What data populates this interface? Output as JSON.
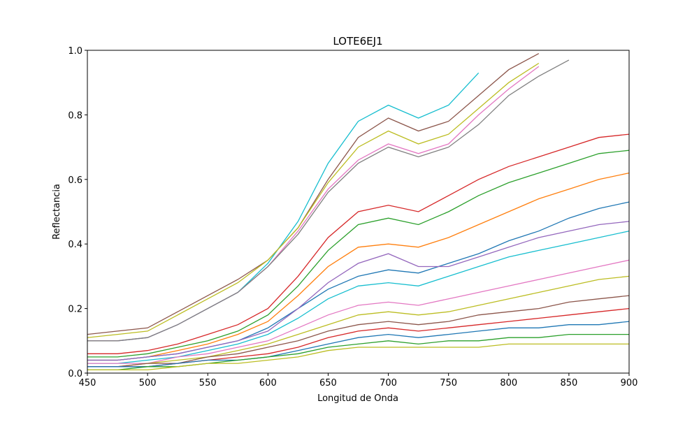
{
  "chart_data": {
    "type": "line",
    "title": "LOTE6EJ1",
    "x_label": "Longitud de Onda",
    "y_label": "Reflectancia",
    "x": [
      450,
      475,
      500,
      525,
      550,
      575,
      600,
      625,
      650,
      675,
      700,
      725,
      750,
      775,
      800,
      825,
      850,
      875,
      900
    ],
    "xlim": [
      450,
      900
    ],
    "xticks": [
      450,
      500,
      550,
      600,
      650,
      700,
      750,
      800,
      850,
      900
    ],
    "ylim": [
      0,
      1
    ],
    "yticks": [
      {
        "value": 0,
        "label": "0.0"
      },
      {
        "value": 0.2,
        "label": "0.2"
      },
      {
        "value": 0.4,
        "label": "0.4"
      },
      {
        "value": 0.6,
        "label": "0.6"
      },
      {
        "value": 0.8,
        "label": "0.8"
      },
      {
        "value": 1,
        "label": "1.0"
      }
    ],
    "series": [
      {
        "color": "#17becf",
        "values": [
          0.1,
          0.1,
          0.11,
          0.15,
          0.2,
          0.25,
          0.34,
          0.47,
          0.65,
          0.78,
          0.83,
          0.79,
          0.83,
          0.93,
          null,
          null,
          null,
          null,
          null
        ]
      },
      {
        "color": "#8c564b",
        "values": [
          0.12,
          0.13,
          0.14,
          0.19,
          0.24,
          0.29,
          0.35,
          0.45,
          0.6,
          0.73,
          0.79,
          0.75,
          0.78,
          0.86,
          0.94,
          0.99,
          null,
          null,
          null
        ]
      },
      {
        "color": "#bcbd22",
        "values": [
          0.11,
          0.12,
          0.13,
          0.18,
          0.23,
          0.28,
          0.35,
          0.45,
          0.59,
          0.7,
          0.75,
          0.71,
          0.74,
          0.82,
          0.9,
          0.96,
          null,
          null,
          null
        ]
      },
      {
        "color": "#e377c2",
        "values": [
          0.1,
          0.1,
          0.11,
          0.15,
          0.2,
          0.25,
          0.33,
          0.44,
          0.57,
          0.66,
          0.71,
          0.68,
          0.71,
          0.8,
          0.88,
          0.95,
          null,
          null,
          null
        ]
      },
      {
        "color": "#7f7f7f",
        "values": [
          0.1,
          0.1,
          0.11,
          0.15,
          0.2,
          0.25,
          0.33,
          0.43,
          0.56,
          0.65,
          0.7,
          0.67,
          0.7,
          0.77,
          0.86,
          0.92,
          0.97,
          null,
          null
        ]
      },
      {
        "color": "#d62728",
        "values": [
          0.06,
          0.06,
          0.07,
          0.09,
          0.12,
          0.15,
          0.2,
          0.3,
          0.42,
          0.5,
          0.52,
          0.5,
          0.55,
          0.6,
          0.64,
          0.67,
          0.7,
          0.73,
          0.74
        ]
      },
      {
        "color": "#2ca02c",
        "values": [
          0.05,
          0.05,
          0.06,
          0.08,
          0.1,
          0.13,
          0.18,
          0.27,
          0.38,
          0.46,
          0.48,
          0.46,
          0.5,
          0.55,
          0.59,
          0.62,
          0.65,
          0.68,
          0.69
        ]
      },
      {
        "color": "#ff7f0e",
        "values": [
          0.04,
          0.04,
          0.05,
          0.07,
          0.09,
          0.12,
          0.16,
          0.24,
          0.33,
          0.39,
          0.4,
          0.39,
          0.42,
          0.46,
          0.5,
          0.54,
          0.57,
          0.6,
          0.62
        ]
      },
      {
        "color": "#1f77b4",
        "values": [
          0.04,
          0.04,
          0.05,
          0.06,
          0.08,
          0.1,
          0.14,
          0.2,
          0.26,
          0.3,
          0.32,
          0.31,
          0.34,
          0.37,
          0.41,
          0.44,
          0.48,
          0.51,
          0.53
        ]
      },
      {
        "color": "#9467bd",
        "values": [
          0.04,
          0.04,
          0.05,
          0.06,
          0.08,
          0.1,
          0.13,
          0.2,
          0.28,
          0.34,
          0.37,
          0.33,
          0.33,
          0.36,
          0.39,
          0.42,
          0.44,
          0.46,
          0.47
        ]
      },
      {
        "color": "#17becf",
        "values": [
          0.03,
          0.03,
          0.04,
          0.05,
          0.07,
          0.09,
          0.12,
          0.17,
          0.23,
          0.27,
          0.28,
          0.27,
          0.3,
          0.33,
          0.36,
          0.38,
          0.4,
          0.42,
          0.44
        ]
      },
      {
        "color": "#e377c2",
        "values": [
          0.03,
          0.03,
          0.03,
          0.05,
          0.06,
          0.08,
          0.1,
          0.14,
          0.18,
          0.21,
          0.22,
          0.21,
          0.23,
          0.25,
          0.27,
          0.29,
          0.31,
          0.33,
          0.35
        ]
      },
      {
        "color": "#bcbd22",
        "values": [
          0.02,
          0.02,
          0.03,
          0.04,
          0.05,
          0.07,
          0.09,
          0.12,
          0.15,
          0.18,
          0.19,
          0.18,
          0.19,
          0.21,
          0.23,
          0.25,
          0.27,
          0.29,
          0.3
        ]
      },
      {
        "color": "#8c564b",
        "values": [
          0.02,
          0.02,
          0.03,
          0.03,
          0.05,
          0.06,
          0.08,
          0.1,
          0.13,
          0.15,
          0.16,
          0.15,
          0.16,
          0.18,
          0.19,
          0.2,
          0.22,
          0.23,
          0.24
        ]
      },
      {
        "color": "#d62728",
        "values": [
          0.02,
          0.02,
          0.02,
          0.03,
          0.04,
          0.05,
          0.06,
          0.08,
          0.11,
          0.13,
          0.14,
          0.13,
          0.14,
          0.15,
          0.16,
          0.17,
          0.18,
          0.19,
          0.2
        ]
      },
      {
        "color": "#1f77b4",
        "values": [
          0.02,
          0.02,
          0.02,
          0.03,
          0.04,
          0.04,
          0.05,
          0.07,
          0.09,
          0.11,
          0.12,
          0.11,
          0.12,
          0.13,
          0.14,
          0.14,
          0.15,
          0.15,
          0.16
        ]
      },
      {
        "color": "#2ca02c",
        "values": [
          0.01,
          0.01,
          0.02,
          0.02,
          0.03,
          0.04,
          0.05,
          0.06,
          0.08,
          0.09,
          0.1,
          0.09,
          0.1,
          0.1,
          0.11,
          0.11,
          0.12,
          0.12,
          0.12
        ]
      },
      {
        "color": "#bcbd22",
        "values": [
          0.01,
          0.01,
          0.01,
          0.02,
          0.03,
          0.03,
          0.04,
          0.05,
          0.07,
          0.08,
          0.08,
          0.08,
          0.08,
          0.08,
          0.09,
          0.09,
          0.09,
          0.09,
          0.09
        ]
      }
    ]
  }
}
